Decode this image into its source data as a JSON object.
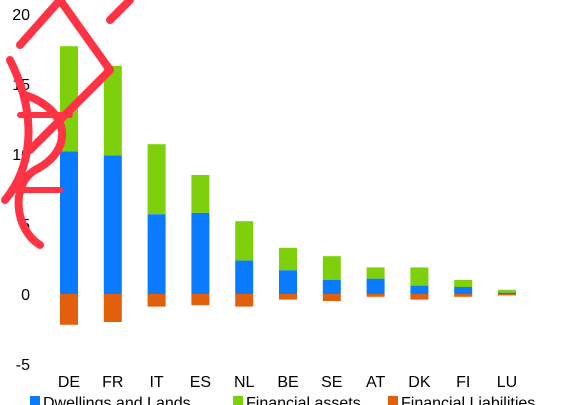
{
  "chart_data": {
    "type": "bar",
    "stacked": true,
    "categories": [
      "DE",
      "FR",
      "IT",
      "ES",
      "NL",
      "BE",
      "SE",
      "AT",
      "DK",
      "FI",
      "LU"
    ],
    "series": [
      {
        "name": "Dwellings and Lands",
        "color": "#0a7bff",
        "values": [
          10.2,
          9.9,
          5.7,
          5.8,
          2.4,
          1.7,
          1.0,
          1.1,
          0.6,
          0.5,
          0.1
        ]
      },
      {
        "name": "Financial assets",
        "color": "#7ed00a",
        "values": [
          7.5,
          6.4,
          5.0,
          2.7,
          2.8,
          1.6,
          1.7,
          0.8,
          1.3,
          0.5,
          0.2
        ]
      },
      {
        "name": "Financial Liabilities",
        "color": "#e2600b",
        "values": [
          -2.2,
          -2.0,
          -0.9,
          -0.8,
          -0.9,
          -0.4,
          -0.5,
          -0.2,
          -0.4,
          -0.2,
          -0.1
        ]
      }
    ],
    "yticks": [
      "20",
      "15",
      "10",
      "5",
      "0",
      "-5"
    ],
    "ylim": [
      -5,
      20
    ],
    "title": "",
    "xlabel": "",
    "ylabel": "",
    "grid": false,
    "legend_position": "bottom"
  }
}
